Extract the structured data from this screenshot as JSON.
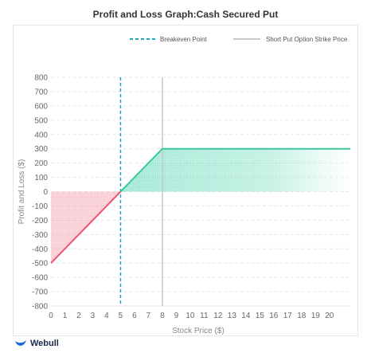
{
  "page": {
    "brand": "Webull"
  },
  "chart_data": {
    "type": "line",
    "title": "Profit and Loss Graph:Cash Secured Put",
    "xlabel": "Stock Price ($)",
    "ylabel": "Profit and Loss ($)",
    "xlim": [
      0,
      21.5
    ],
    "ylim": [
      -800,
      800
    ],
    "x_ticks": [
      0,
      1,
      2,
      3,
      4,
      5,
      6,
      7,
      8,
      9,
      10,
      11,
      12,
      13,
      14,
      15,
      16,
      17,
      18,
      19,
      20
    ],
    "y_ticks": [
      800,
      700,
      600,
      500,
      400,
      300,
      200,
      100,
      0,
      -100,
      -200,
      -300,
      -400,
      -500,
      -600,
      -700,
      -800
    ],
    "highlighted_y_ticks": [
      300,
      -500
    ],
    "grid": true,
    "legend_position": "top-right",
    "series": [
      {
        "name": "",
        "x": [
          0,
          5,
          8,
          21.5
        ],
        "y": [
          -500,
          0,
          300,
          300
        ]
      }
    ],
    "breakeven": {
      "label": "Breakeven Point",
      "x": 5,
      "color": "#1fa7b8"
    },
    "strike": {
      "label": "Short Put Option Strike Price",
      "x": 8,
      "color": "#c8c8c8"
    },
    "colors": {
      "profit": "#3cc6a0",
      "loss": "#f0536e",
      "profit_fill": "#4fd4ae",
      "loss_fill": "#f48ea0"
    }
  }
}
